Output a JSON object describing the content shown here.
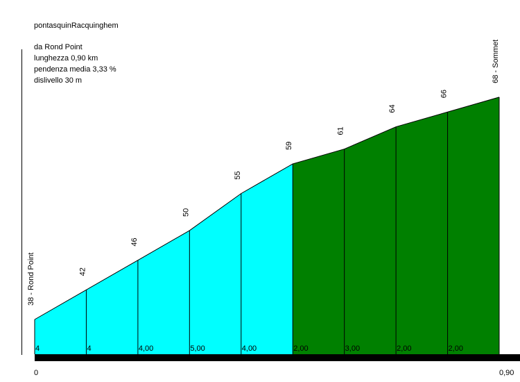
{
  "header": {
    "title": "pontasquinRacquinghem",
    "start_line": "da Rond Point",
    "length_line": "lunghezza 0,90 km",
    "gradient_line": "pendenza media 3,33 %",
    "gain_line": "dislivello 30 m"
  },
  "x_axis": {
    "start_label": "0",
    "end_label": "0,90"
  },
  "colors": {
    "low_gradient": "#00FFFF",
    "high_gradient": "#008000",
    "divider": "#000000",
    "axis": "#000000"
  },
  "chart_data": {
    "type": "area",
    "title": "pontasquinRacquinghem",
    "x_unit": "km",
    "y_unit": "m",
    "xlim": [
      0,
      0.9
    ],
    "x": [
      0,
      0.1,
      0.2,
      0.3,
      0.4,
      0.5,
      0.6,
      0.7,
      0.8,
      0.9
    ],
    "elevation": [
      38,
      42,
      46,
      50,
      55,
      59,
      61,
      64,
      66,
      68
    ],
    "point_labels": [
      "38 - Rond Point",
      "42",
      "46",
      "50",
      "55",
      "59",
      "61",
      "64",
      "66",
      "68 - Sommet"
    ],
    "segments": [
      {
        "from": 0,
        "to": 0.1,
        "gradient_label": "4",
        "color": "#00FFFF"
      },
      {
        "from": 0.1,
        "to": 0.2,
        "gradient_label": "4",
        "color": "#00FFFF"
      },
      {
        "from": 0.2,
        "to": 0.3,
        "gradient_label": "4,00",
        "color": "#00FFFF"
      },
      {
        "from": 0.3,
        "to": 0.4,
        "gradient_label": "5,00",
        "color": "#00FFFF"
      },
      {
        "from": 0.4,
        "to": 0.5,
        "gradient_label": "4,00",
        "color": "#00FFFF"
      },
      {
        "from": 0.5,
        "to": 0.6,
        "gradient_label": "2,00",
        "color": "#008000"
      },
      {
        "from": 0.6,
        "to": 0.7,
        "gradient_label": "3,00",
        "color": "#008000"
      },
      {
        "from": 0.7,
        "to": 0.8,
        "gradient_label": "2,00",
        "color": "#008000"
      },
      {
        "from": 0.8,
        "to": 0.9,
        "gradient_label": "2,00",
        "color": "#008000"
      }
    ]
  }
}
